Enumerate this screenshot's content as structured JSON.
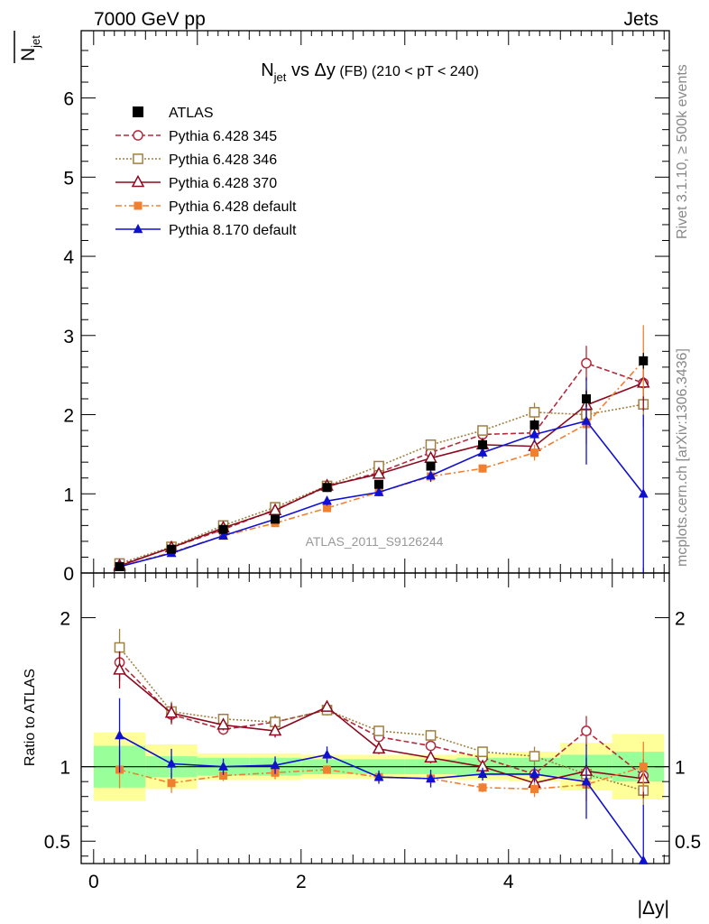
{
  "header": {
    "left": "7000 GeV pp",
    "right": "Jets"
  },
  "side": {
    "rivet": "Rivet 3.1.10, ≥ 500k events",
    "mcplots": "mcplots.cern.ch [arXiv:1306.3436]"
  },
  "chart_data": [
    {
      "type": "line",
      "title": {
        "main": "N",
        "sub": "jet",
        "vs": " vs Δy",
        "cond": " (FB) (210 < pT < 240)"
      },
      "ylabel": {
        "main": "N",
        "sub": "jet"
      },
      "watermark": "ATLAS_2011_S9126244",
      "xlim": [
        -0.12,
        5.55
      ],
      "ylim": [
        0,
        6.85
      ],
      "y_ticks": [
        0,
        1,
        2,
        3,
        4,
        5,
        6
      ],
      "y_tick_labels": [
        "0",
        "1",
        "2",
        "3",
        "4",
        "5",
        "6"
      ],
      "x": [
        0.25,
        0.75,
        1.25,
        1.75,
        2.25,
        2.75,
        3.25,
        3.75,
        4.25,
        4.75,
        5.3
      ],
      "series": [
        {
          "name": "ATLAS",
          "color": "#000000",
          "marker": "square-filled",
          "dash": "none",
          "values": [
            0.08,
            0.3,
            0.55,
            0.68,
            1.08,
            1.12,
            1.35,
            1.62,
            1.87,
            2.2,
            2.68
          ],
          "errors": [
            0.01,
            0.02,
            0.02,
            0.02,
            0.03,
            0.04,
            0.05,
            0.06,
            0.07,
            0.1,
            0.1
          ]
        },
        {
          "name": "Pythia 6.428 345",
          "color": "#b22a3c",
          "marker": "circle-open",
          "dash": "6,3",
          "values": [
            0.1,
            0.32,
            0.55,
            0.8,
            1.09,
            1.27,
            1.52,
            1.75,
            1.77,
            2.65,
            2.4
          ],
          "errors": [
            0.01,
            0.02,
            0.02,
            0.03,
            0.03,
            0.04,
            0.05,
            0.05,
            0.1,
            0.22,
            0.3
          ]
        },
        {
          "name": "Pythia 6.428 346",
          "color": "#a08040",
          "marker": "square-open",
          "dash": "2,2",
          "values": [
            0.12,
            0.33,
            0.6,
            0.83,
            1.1,
            1.35,
            1.62,
            1.8,
            2.03,
            2.0,
            2.13
          ],
          "errors": [
            0.01,
            0.02,
            0.02,
            0.03,
            0.03,
            0.04,
            0.05,
            0.05,
            0.12,
            0.12,
            0.28
          ]
        },
        {
          "name": "Pythia 6.428 370",
          "color": "#8b0a1e",
          "marker": "triangle-open",
          "dash": "none",
          "values": [
            0.09,
            0.32,
            0.57,
            0.79,
            1.1,
            1.25,
            1.45,
            1.62,
            1.6,
            2.12,
            2.4
          ],
          "errors": [
            0.01,
            0.02,
            0.02,
            0.03,
            0.03,
            0.04,
            0.05,
            0.05,
            0.1,
            0.2,
            0.35
          ]
        },
        {
          "name": "Pythia 6.428 default",
          "color": "#f08030",
          "marker": "square-filled-small",
          "dash": "7,3,2,3",
          "values": [
            0.08,
            0.26,
            0.47,
            0.63,
            0.82,
            1.02,
            1.22,
            1.32,
            1.52,
            1.88,
            2.68
          ],
          "errors": [
            0.01,
            0.02,
            0.02,
            0.03,
            0.03,
            0.04,
            0.05,
            0.05,
            0.1,
            0.25,
            0.45
          ]
        },
        {
          "name": "Pythia 8.170 default",
          "color": "#1010d0",
          "marker": "triangle-filled",
          "dash": "none",
          "values": [
            0.08,
            0.25,
            0.47,
            0.68,
            0.91,
            1.02,
            1.23,
            1.52,
            1.75,
            1.92,
            1.0
          ],
          "errors": [
            0.02,
            0.03,
            0.03,
            0.04,
            0.06,
            0.05,
            0.08,
            0.07,
            0.1,
            0.55,
            1.0
          ]
        }
      ]
    },
    {
      "type": "line",
      "ylabel": "Ratio to ATLAS",
      "xlabel": "|Δy|",
      "xlim": [
        -0.12,
        5.55
      ],
      "ylim": [
        0.35,
        2.3
      ],
      "x_ticks": [
        0,
        2,
        4
      ],
      "x_tick_labels": [
        "0",
        "2",
        "4"
      ],
      "y_ticks": [
        0.5,
        1,
        2
      ],
      "y_tick_labels": [
        "0.5",
        "1",
        "2"
      ],
      "bands": {
        "x_edges": [
          0,
          0.5,
          1,
          1.5,
          2,
          2.5,
          3,
          3.5,
          4,
          4.5,
          5,
          5.5
        ],
        "inner": [
          0.14,
          0.07,
          0.06,
          0.06,
          0.05,
          0.05,
          0.05,
          0.06,
          0.06,
          0.08,
          0.1
        ],
        "outer": [
          0.23,
          0.15,
          0.09,
          0.09,
          0.08,
          0.08,
          0.08,
          0.09,
          0.1,
          0.16,
          0.22
        ],
        "inner_color": "#99ff99",
        "outer_color": "#ffff99"
      },
      "series": [
        {
          "name": "Pythia 6.428 345",
          "values": [
            1.7,
            1.35,
            1.25,
            1.3,
            1.38,
            1.2,
            1.14,
            1.06,
            0.95,
            1.24,
            0.94
          ]
        },
        {
          "name": "Pythia 6.428 346",
          "values": [
            1.8,
            1.37,
            1.32,
            1.3,
            1.38,
            1.24,
            1.21,
            1.1,
            1.07,
            0.95,
            0.84
          ]
        },
        {
          "name": "Pythia 6.428 370",
          "values": [
            1.65,
            1.36,
            1.28,
            1.24,
            1.4,
            1.12,
            1.06,
            1.0,
            0.89,
            0.97,
            0.92
          ]
        },
        {
          "name": "Pythia 6.428 default",
          "values": [
            0.98,
            0.89,
            0.94,
            0.96,
            0.98,
            0.93,
            0.92,
            0.86,
            0.85,
            0.88,
            1.0
          ]
        },
        {
          "name": "Pythia 8.170 default",
          "values": [
            1.21,
            1.02,
            1.0,
            1.01,
            1.08,
            0.93,
            0.92,
            0.95,
            0.95,
            0.9,
            0.37
          ]
        }
      ]
    }
  ]
}
